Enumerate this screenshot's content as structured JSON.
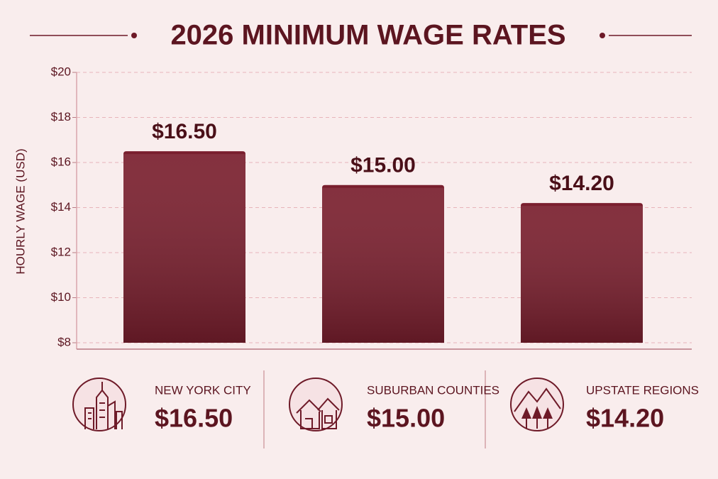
{
  "chart_data": {
    "type": "bar",
    "title": "2026 MINIMUM WAGE RATES",
    "y_label": "HOURLY WAGE (USD)",
    "categories": [
      "NEW YORK CITY",
      "SUBURBAN COUNTIES",
      "UPSTATE REGIONS"
    ],
    "values": [
      16.5,
      15.0,
      14.2
    ],
    "value_labels": [
      "$16.50",
      "$15.00",
      "$14.20"
    ],
    "color": "#7a1f2e",
    "ylim": [
      8,
      20
    ],
    "yticks": [
      {
        "value": 8,
        "label": "$8"
      },
      {
        "value": 10,
        "label": "$10"
      },
      {
        "value": 12,
        "label": "$12"
      },
      {
        "value": 14,
        "label": "$14"
      },
      {
        "value": 16,
        "label": "$16"
      },
      {
        "value": 18,
        "label": "$18"
      },
      {
        "value": 20,
        "label": "$20"
      }
    ],
    "grid": true
  }
}
